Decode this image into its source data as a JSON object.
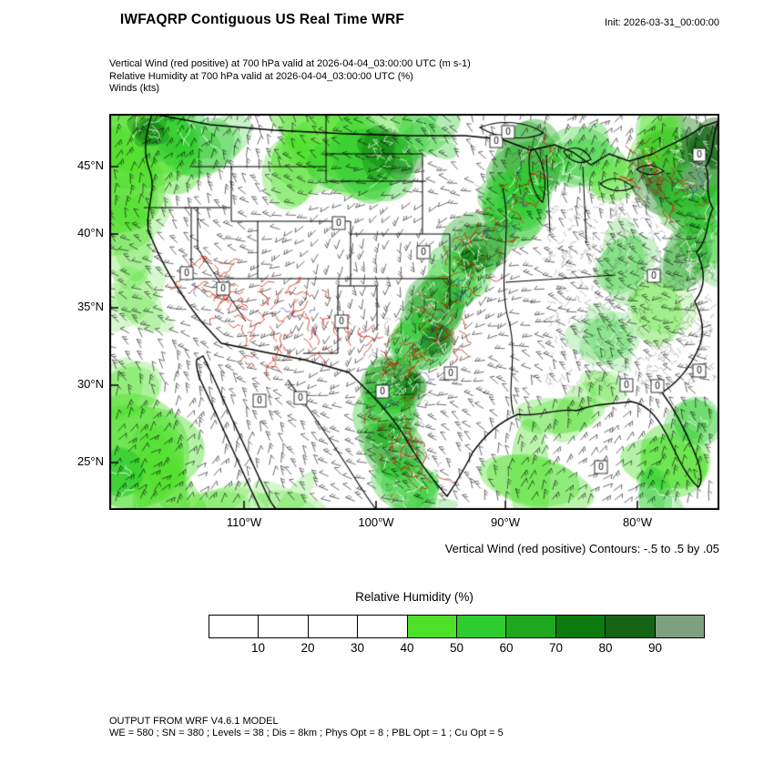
{
  "header": {
    "title": "IWFAQRP Contiguous US Real Time WRF",
    "init_label": "Init: 2026-03-31_00:00:00"
  },
  "subtitle": {
    "lines": [
      "Vertical Wind (red positive) at 700 hPa valid at 2026-04-04_03:00:00 UTC   (m s-1)",
      "Relative Humidity at 700 hPa valid at 2026-04-04_03:00:00 UTC   (%)",
      "Winds   (kts)"
    ]
  },
  "map": {
    "lat_labels": [
      "45°N",
      "40°N",
      "35°N",
      "30°N",
      "25°N"
    ],
    "lon_labels": [
      "110°W",
      "100°W",
      "90°W",
      "80°W"
    ],
    "contour_zero_label": "0",
    "caption": "Vertical Wind (red positive) Contours: -.5 to .5 by .05"
  },
  "map_colors": {
    "updraft_contour": "#cc1a00",
    "downdraft_contour": "#2233cc",
    "geography_outline": "#000000"
  },
  "legend": {
    "title": "Relative Humidity  (%)",
    "ticks": [
      "10",
      "20",
      "30",
      "40",
      "50",
      "60",
      "70",
      "80",
      "90"
    ],
    "colors": [
      "#ffffff",
      "#ffffff",
      "#ffffff",
      "#ffffff",
      "#4ee029",
      "#2ecc2e",
      "#1fa81f",
      "#0c7a0c",
      "#156415",
      "#7fa07f"
    ]
  },
  "footer": {
    "lines": [
      "OUTPUT FROM WRF V4.6.1 MODEL",
      "WE = 580 ; SN = 380 ; Levels = 38 ; Dis = 8km ; Phys Opt = 8 ; PBL Opt = 1 ; Cu Opt = 5"
    ]
  }
}
